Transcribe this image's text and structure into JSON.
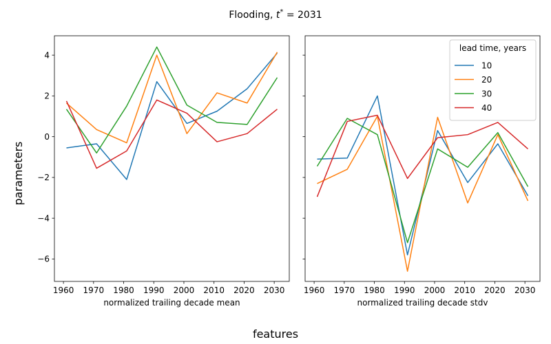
{
  "figure": {
    "suptitle_main": "Flooding, ",
    "suptitle_var": "t",
    "suptitle_sup": "*",
    "suptitle_rest": " = 2031",
    "supxlabel": "features",
    "supylabel": "parameters"
  },
  "colors": {
    "10": "#1f77b4",
    "20": "#ff7f0e",
    "30": "#2ca02c",
    "40": "#d62728"
  },
  "legend": {
    "title": "lead time, years",
    "placement": "top-right",
    "entries": [
      "10",
      "20",
      "30",
      "40"
    ]
  },
  "chart_data": [
    {
      "type": "line",
      "xlabel": "normalized trailing decade mean",
      "xlim": [
        1957,
        2035
      ],
      "ylim": [
        -7.1,
        4.95
      ],
      "xticks": [
        1960,
        1970,
        1980,
        1990,
        2000,
        2010,
        2020,
        2030
      ],
      "yticks": [
        -6,
        -4,
        -2,
        0,
        2,
        4
      ],
      "x": [
        1961,
        1971,
        1981,
        1991,
        2001,
        2011,
        2021,
        2031
      ],
      "series": [
        {
          "name": "10",
          "values": [
            -0.55,
            -0.35,
            -2.1,
            2.7,
            0.65,
            1.25,
            2.35,
            4.1
          ]
        },
        {
          "name": "20",
          "values": [
            1.65,
            0.35,
            -0.3,
            4.0,
            0.15,
            2.15,
            1.65,
            4.15
          ]
        },
        {
          "name": "30",
          "values": [
            1.35,
            -0.8,
            1.5,
            4.4,
            1.55,
            0.7,
            0.6,
            2.9
          ]
        },
        {
          "name": "40",
          "values": [
            1.75,
            -1.55,
            -0.7,
            1.8,
            1.15,
            -0.25,
            0.15,
            1.35
          ]
        }
      ]
    },
    {
      "type": "line",
      "xlabel": "normalized trailing decade stdv",
      "xlim": [
        1957,
        2035
      ],
      "ylim": [
        -7.1,
        4.95
      ],
      "xticks": [
        1960,
        1970,
        1980,
        1990,
        2000,
        2010,
        2020,
        2030
      ],
      "yticks": [
        -6,
        -4,
        -2,
        0,
        2,
        4
      ],
      "x": [
        1961,
        1971,
        1981,
        1991,
        2001,
        2011,
        2021,
        2031
      ],
      "series": [
        {
          "name": "10",
          "values": [
            -1.1,
            -1.05,
            2.0,
            -5.8,
            0.3,
            -2.25,
            -0.35,
            -2.9
          ]
        },
        {
          "name": "20",
          "values": [
            -2.3,
            -1.6,
            1.0,
            -6.6,
            0.95,
            -3.25,
            0.1,
            -3.15
          ]
        },
        {
          "name": "30",
          "values": [
            -1.45,
            0.9,
            0.1,
            -5.2,
            -0.6,
            -1.5,
            0.2,
            -2.45
          ]
        },
        {
          "name": "40",
          "values": [
            -2.95,
            0.75,
            1.05,
            -2.05,
            -0.05,
            0.1,
            0.7,
            -0.6
          ]
        }
      ]
    }
  ]
}
